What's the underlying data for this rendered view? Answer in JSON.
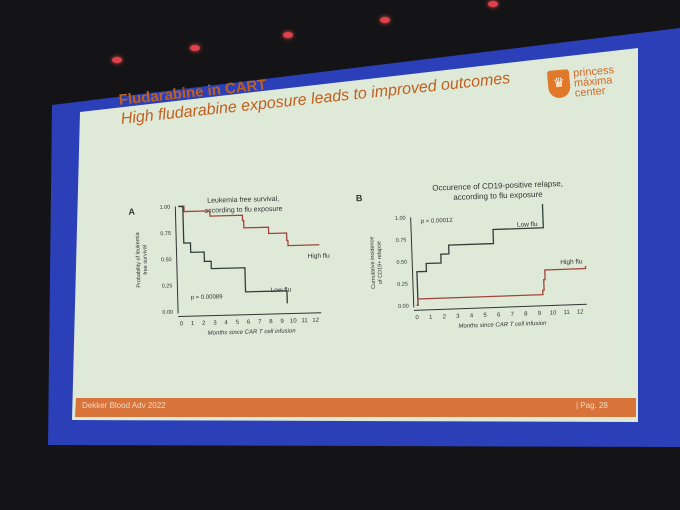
{
  "slide": {
    "title": "Fludarabine in CART",
    "subtitle": "High fludarabine exposure leads to improved outcomes",
    "logo": {
      "line1": "princess",
      "line2": "máxima",
      "line3": "center"
    },
    "footer_left": "Dekker Blood Adv 2022",
    "footer_right": "|  Pag. 28"
  },
  "colors": {
    "high_flu": "#a0463a",
    "low_flu": "#2f3f38",
    "title": "#c0601f",
    "footer": "#d8733a",
    "frame": "#2a3fb8"
  },
  "chart_data": [
    {
      "type": "line",
      "panel": "A",
      "title": "Leukemia free survival, according to flu exposure",
      "title_lines": [
        "Leukemia free survival,",
        "according to flu exposure"
      ],
      "xlabel": "Months since CAR T cell infusion",
      "ylabel": "Probability of leukemia free survival",
      "ylabel_lines": [
        "Probability of leukemia",
        "free survival"
      ],
      "xlim": [
        0,
        12.5
      ],
      "ylim": [
        0,
        1
      ],
      "xticks": [
        "0",
        "1",
        "2",
        "3",
        "4",
        "5",
        "6",
        "7",
        "8",
        "9",
        "10",
        "11",
        "12"
      ],
      "yticks": [
        "0.00",
        "0.25",
        "0.50",
        "0.75",
        "1.00"
      ],
      "annotation": "p = 0.00089",
      "series": [
        {
          "name": "High flu",
          "x": [
            0,
            0.5,
            2.8,
            5.7,
            5.8,
            8,
            9.6,
            9.7,
            12.5
          ],
          "y": [
            1,
            0.95,
            0.9,
            0.85,
            0.78,
            0.72,
            0.65,
            0.6,
            0.6
          ]
        },
        {
          "name": "Low flu",
          "x": [
            0,
            0.4,
            1,
            2.2,
            2.8,
            5.8,
            9.5,
            9.5
          ],
          "y": [
            1,
            0.65,
            0.56,
            0.47,
            0.4,
            0.17,
            0.17,
            0.05
          ]
        }
      ]
    },
    {
      "type": "line",
      "panel": "B",
      "title": "Occurence of CD19-positive relapse, according to flu exposure",
      "title_lines": [
        "Occurence of CD19-positive relapse,",
        "according to flu exposure"
      ],
      "xlabel": "Months since CAR T cell infusion",
      "ylabel": "Cumulative incidence of CD19+ relapse",
      "ylabel_lines": [
        "Cumulative incidence",
        "of CD19+ relapse"
      ],
      "xlim": [
        0,
        12.5
      ],
      "ylim": [
        0,
        1
      ],
      "xticks": [
        "0",
        "1",
        "2",
        "3",
        "4",
        "5",
        "6",
        "7",
        "8",
        "9",
        "10",
        "11",
        "12"
      ],
      "yticks": [
        "0.00",
        "0.25",
        "0.50",
        "0.75",
        "1.00"
      ],
      "annotation": "p = 0.00012",
      "series": [
        {
          "name": "Low flu",
          "x": [
            0,
            0.1,
            0.8,
            1.9,
            2.5,
            5.8,
            9.5,
            9.5
          ],
          "y": [
            0,
            0.38,
            0.47,
            0.57,
            0.67,
            0.83,
            0.85,
            1.1
          ]
        },
        {
          "name": "High flu",
          "x": [
            0,
            0.1,
            9.3,
            9.4,
            9.5,
            12.5
          ],
          "y": [
            0,
            0.07,
            0.12,
            0.24,
            0.35,
            0.38
          ]
        }
      ]
    }
  ]
}
